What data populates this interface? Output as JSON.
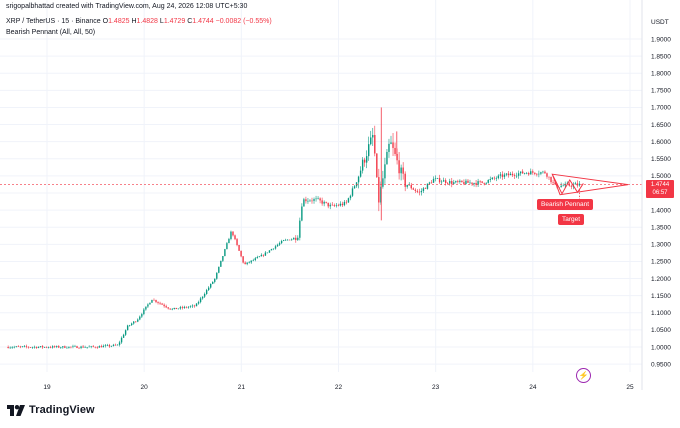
{
  "header": {
    "text": "srigopalbhattad created with TradingView.com, Aug 24, 2026 12:08 UTC+5:30"
  },
  "symbol": {
    "name": "XRP / TetherUS · 15 · Binance",
    "o_label": "O",
    "o": "1.4825",
    "h_label": "H",
    "h": "1.4828",
    "l_label": "L",
    "l": "1.4729",
    "c_label": "C",
    "c": "1.4744",
    "change": "−0.0082 (−0.55%)"
  },
  "indicator": {
    "text": "Bearish Pennant (All, All, 50)"
  },
  "currency": "USDT",
  "price_tag": {
    "price": "1.4744",
    "countdown": "06:57"
  },
  "pattern": {
    "name_label": "Bearish Pennant",
    "target_label": "Target"
  },
  "brand": {
    "name": "TradingView"
  },
  "colors": {
    "up": "#089981",
    "down": "#f23645",
    "grid": "#f0f3fa",
    "axis_text": "#131722"
  },
  "icons": {
    "replay": "replay-icon",
    "logo": "tradingview-logo-icon"
  },
  "chart_data": {
    "type": "candlestick",
    "ylim": [
      0.93,
      1.96
    ],
    "y_ticks": [
      "0.9500",
      "1.0000",
      "1.0500",
      "1.1000",
      "1.1500",
      "1.2000",
      "1.2500",
      "1.3000",
      "1.3500",
      "1.4000",
      "1.4500",
      "1.5000",
      "1.5500",
      "1.6000",
      "1.6500",
      "1.7000",
      "1.7500",
      "1.8000",
      "1.8500",
      "1.9000"
    ],
    "x_ticks": [
      "19",
      "20",
      "21",
      "22",
      "23",
      "24",
      "25"
    ],
    "last_price": 1.4744,
    "path": [
      [
        18.6,
        1.0
      ],
      [
        19.5,
        1.0
      ],
      [
        19.75,
        1.005
      ],
      [
        19.85,
        1.06
      ],
      [
        19.95,
        1.08
      ],
      [
        20.1,
        1.14
      ],
      [
        20.3,
        1.11
      ],
      [
        20.55,
        1.12
      ],
      [
        20.75,
        1.2
      ],
      [
        20.92,
        1.34
      ],
      [
        21.05,
        1.24
      ],
      [
        21.25,
        1.27
      ],
      [
        21.45,
        1.31
      ],
      [
        21.6,
        1.32
      ],
      [
        21.65,
        1.43
      ],
      [
        21.8,
        1.43
      ],
      [
        21.95,
        1.41
      ],
      [
        22.1,
        1.42
      ],
      [
        22.2,
        1.48
      ],
      [
        22.3,
        1.56
      ],
      [
        22.38,
        1.62
      ],
      [
        22.43,
        1.42
      ],
      [
        22.55,
        1.6
      ],
      [
        22.7,
        1.48
      ],
      [
        22.85,
        1.45
      ],
      [
        23.0,
        1.49
      ],
      [
        23.2,
        1.48
      ],
      [
        23.5,
        1.48
      ],
      [
        23.7,
        1.5
      ],
      [
        23.95,
        1.51
      ],
      [
        24.15,
        1.51
      ],
      [
        24.25,
        1.47
      ],
      [
        24.5,
        1.4744
      ]
    ],
    "spikes": [
      [
        22.44,
        1.7
      ],
      [
        22.44,
        1.37
      ],
      [
        22.6,
        1.63
      ]
    ]
  }
}
